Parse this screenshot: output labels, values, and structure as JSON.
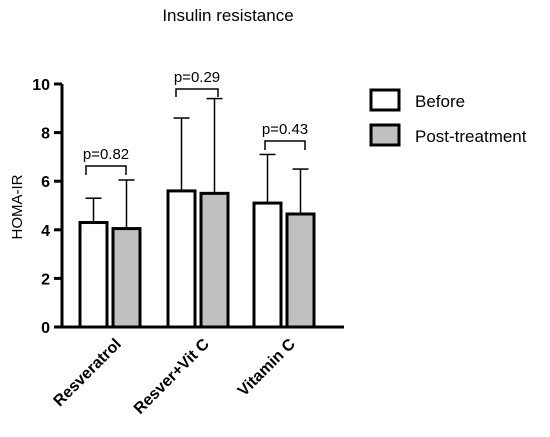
{
  "chart_data": {
    "type": "bar",
    "title": "Insulin resistance",
    "ylabel": "HOMA-IR",
    "xlabel": "",
    "ylim": [
      0,
      10
    ],
    "yticks": [
      "0",
      "2",
      "4",
      "6",
      "8",
      "10"
    ],
    "categories": [
      "Resveratrol",
      "Resver+Vit C",
      "Vitamin C"
    ],
    "series": [
      {
        "name": "Before",
        "values": [
          4.3,
          5.6,
          5.1
        ],
        "errors": [
          1.0,
          3.0,
          2.0
        ],
        "color": "#ffffff"
      },
      {
        "name": "Post-treatment",
        "values": [
          4.05,
          5.5,
          4.65
        ],
        "errors": [
          2.0,
          3.9,
          1.85
        ],
        "color": "#c0c0c0"
      }
    ],
    "annotations": [
      "p=0.82",
      "p=0.29",
      "p=0.43"
    ],
    "legend": "right",
    "grid": false
  }
}
